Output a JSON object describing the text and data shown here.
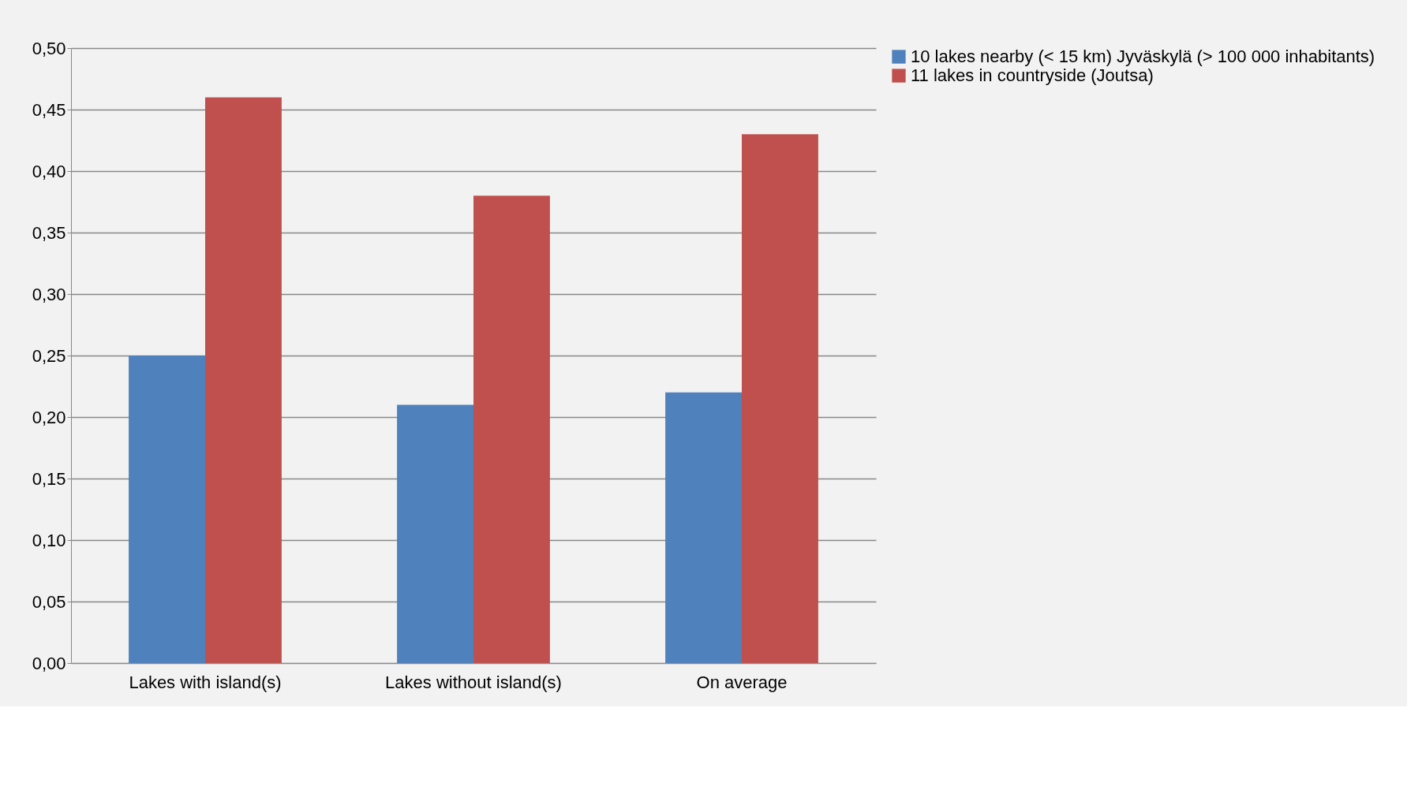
{
  "chart_data": {
    "type": "bar",
    "categories": [
      "Lakes with island(s)",
      "Lakes without island(s)",
      "On average"
    ],
    "series": [
      {
        "name": "10 lakes nearby (< 15 km) Jyväskylä (> 100 000 inhabitants)",
        "color": "#4f81bd",
        "values": [
          0.25,
          0.21,
          0.22
        ]
      },
      {
        "name": "11 lakes in countryside (Joutsa)",
        "color": "#c0504d",
        "values": [
          0.46,
          0.38,
          0.43
        ]
      }
    ],
    "ylim": [
      0,
      0.5
    ],
    "yticks": [
      {
        "value": 0,
        "label": "0,00"
      },
      {
        "value": 0.05,
        "label": "0,05"
      },
      {
        "value": 0.1,
        "label": "0,10"
      },
      {
        "value": 0.15,
        "label": "0,15"
      },
      {
        "value": 0.2,
        "label": "0,20"
      },
      {
        "value": 0.25,
        "label": "0,25"
      },
      {
        "value": 0.3,
        "label": "0,30"
      },
      {
        "value": 0.35,
        "label": "0,35"
      },
      {
        "value": 0.4,
        "label": "0,40"
      },
      {
        "value": 0.45,
        "label": "0,45"
      },
      {
        "value": 0.5,
        "label": "0,50"
      }
    ],
    "grid": "y",
    "legend": "right"
  }
}
